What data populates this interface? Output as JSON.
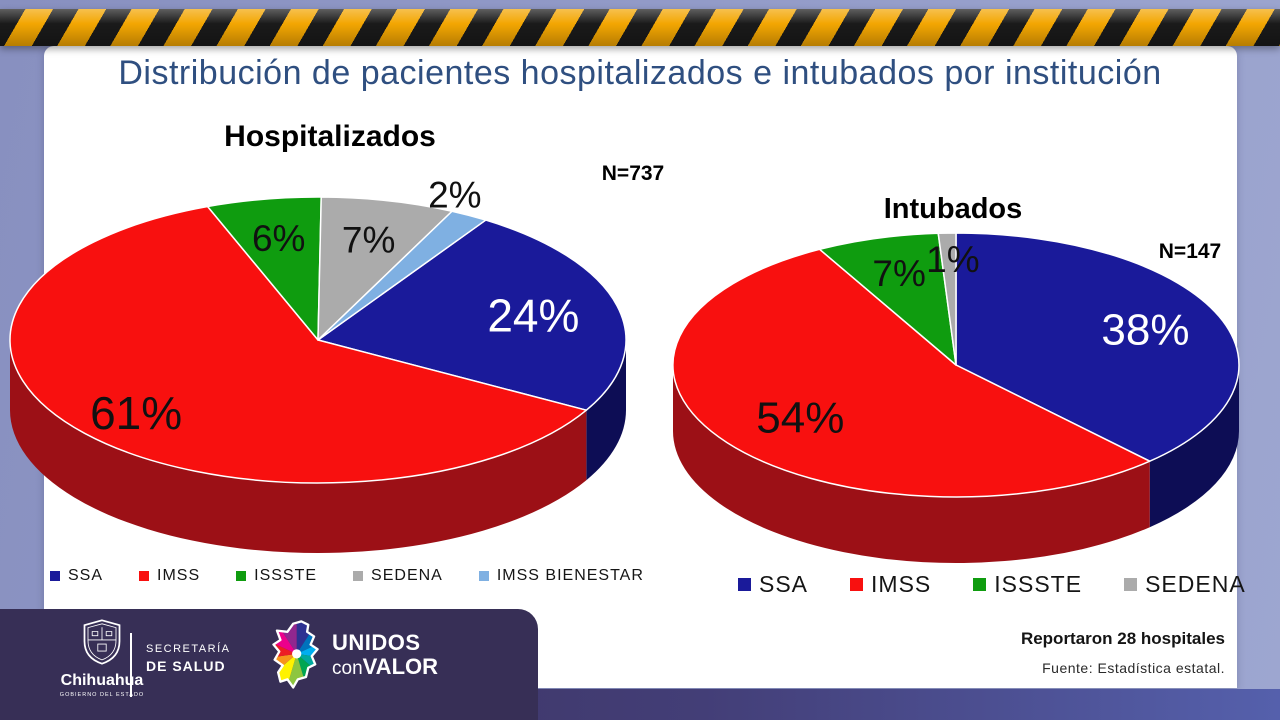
{
  "slide": {
    "title": "Distribución de pacientes hospitalizados e intubados por institución"
  },
  "theme": {
    "bg_start": "#8890C0",
    "bg_end": "#9DA6D0",
    "panel": "#FFFFFF",
    "title_color": "#2F4F80",
    "hazard_yellow": "#F3A602",
    "hazard_black": "#1A1A1A",
    "footer_bg": "#372F56",
    "strip_start": "#392F57",
    "strip_end": "#5560AC"
  },
  "chart_data": [
    {
      "type": "pie",
      "title": "Hospitalizados",
      "n_label": "N=737",
      "unit": "%",
      "start_angle_deg": 33,
      "categories": [
        "SSA",
        "IMSS",
        "ISSSTE",
        "SEDENA",
        "IMSS BIENESTAR"
      ],
      "values": [
        24,
        61,
        6,
        7,
        2
      ],
      "colors": [
        "#1A1A9A",
        "#F8100F",
        "#0F9C0F",
        "#ABABAB",
        "#7FB0E2"
      ],
      "side_colors": [
        "#0D0D55",
        "#9C1016",
        "#0A6E0A",
        "#7E7E7E",
        "#4F7FB0"
      ],
      "label_colors": [
        "#FFFFFF",
        "#111111",
        "#111111",
        "#111111",
        "#111111"
      ],
      "legend_position": "bottom"
    },
    {
      "type": "pie",
      "title": "Intubados",
      "n_label": "N=147",
      "unit": "%",
      "start_angle_deg": 0,
      "categories": [
        "SSA",
        "IMSS",
        "ISSSTE",
        "SEDENA"
      ],
      "values": [
        38,
        54,
        7,
        1
      ],
      "colors": [
        "#1A1A9A",
        "#F8100F",
        "#0F9C0F",
        "#ABABAB"
      ],
      "side_colors": [
        "#0D0D55",
        "#9C1016",
        "#0A6E0A",
        "#7E7E7E"
      ],
      "label_colors": [
        "#FFFFFF",
        "#111111",
        "#111111",
        "#111111"
      ],
      "legend_position": "bottom"
    }
  ],
  "footer": {
    "org_name": "Chihuahua",
    "org_sub": "GOBIERNO DEL ESTADO",
    "secretaria_line1": "SECRETARÍA",
    "secretaria_line2": "DE SALUD",
    "brand_unidos": "UNIDOS",
    "brand_con": "con",
    "brand_valor": "VALOR",
    "report": "Reportaron 28 hospitales",
    "source": "Fuente: Estadística estatal.",
    "logo_colors": [
      "#2E3192",
      "#0072BC",
      "#00AEEF",
      "#00A99D",
      "#00A651",
      "#8DC63F",
      "#FFF200",
      "#F7941D",
      "#ED1C24",
      "#EC008C",
      "#92278F"
    ]
  }
}
